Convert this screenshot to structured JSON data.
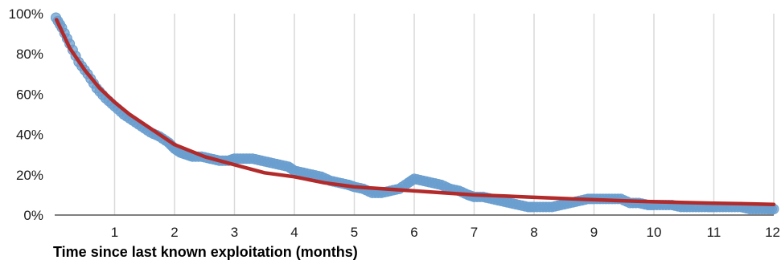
{
  "chart_data": {
    "type": "scatter",
    "title": "",
    "xlabel": "Time since last known exploitation (months)",
    "ylabel": "",
    "xlim": [
      0,
      12
    ],
    "ylim": [
      0,
      100
    ],
    "x_ticks": [
      1,
      2,
      3,
      4,
      5,
      6,
      7,
      8,
      9,
      10,
      11,
      12
    ],
    "x_tick_labels": [
      "1",
      "2",
      "3",
      "4",
      "5",
      "6",
      "7",
      "8",
      "9",
      "10",
      "11",
      "12"
    ],
    "y_ticks": [
      0,
      20,
      40,
      60,
      80,
      100
    ],
    "y_tick_labels": [
      "0%",
      "20%",
      "40%",
      "60%",
      "80%",
      "100%"
    ],
    "grid": "vertical",
    "legend": "none",
    "colors": {
      "observed": "#6a9ecf",
      "fit": "#b22a2a",
      "grid": "#d9d9d9",
      "axis": "#555555"
    },
    "series": [
      {
        "kind": "observed-points",
        "x": [
          0.02,
          0.12,
          0.25,
          0.4,
          0.55,
          0.7,
          0.85,
          1.0,
          1.15,
          1.3,
          1.45,
          1.6,
          1.75,
          1.9,
          2.0,
          2.1,
          2.2,
          2.3,
          2.45,
          2.6,
          2.75,
          2.9,
          3.0,
          3.15,
          3.3,
          3.45,
          3.6,
          3.75,
          3.9,
          4.0,
          4.15,
          4.3,
          4.45,
          4.6,
          4.75,
          4.9,
          5.0,
          5.15,
          5.3,
          5.45,
          5.6,
          5.75,
          5.9,
          6.0,
          6.15,
          6.3,
          6.45,
          6.6,
          6.75,
          6.9,
          7.0,
          7.15,
          7.3,
          7.45,
          7.6,
          7.75,
          7.9,
          8.0,
          8.15,
          8.3,
          8.45,
          8.6,
          8.75,
          8.9,
          9.0,
          9.15,
          9.3,
          9.45,
          9.6,
          9.75,
          9.9,
          10.0,
          10.15,
          10.3,
          10.45,
          10.6,
          10.75,
          10.9,
          11.0,
          11.15,
          11.3,
          11.45,
          11.6,
          11.75,
          11.9,
          12.0
        ],
        "y": [
          98,
          93,
          85,
          76,
          70,
          63,
          58,
          54,
          50,
          47,
          44,
          41,
          39,
          36,
          33,
          31,
          30,
          29,
          29,
          28,
          27,
          27,
          28,
          28,
          28,
          27,
          26,
          25,
          24,
          22,
          21,
          20,
          19,
          17,
          16,
          15,
          14,
          13,
          11,
          11,
          12,
          13,
          16,
          18,
          17,
          16,
          15,
          13,
          12,
          10,
          9,
          9,
          8,
          7,
          6,
          5,
          4,
          4,
          4,
          4,
          5,
          6,
          7,
          8,
          8,
          8,
          8,
          8,
          6,
          6,
          5,
          5,
          5,
          5,
          4,
          4,
          4,
          4,
          4,
          4,
          4,
          4,
          3,
          3,
          3,
          3
        ]
      },
      {
        "kind": "fitted-curve",
        "x": [
          0.03,
          0.25,
          0.5,
          0.75,
          1.0,
          1.25,
          1.5,
          1.75,
          2.0,
          2.5,
          3.0,
          3.5,
          4.0,
          4.5,
          5.0,
          5.5,
          6.0,
          6.5,
          7.0,
          7.5,
          8.0,
          8.5,
          9.0,
          9.5,
          10.0,
          10.5,
          11.0,
          11.5,
          12.0
        ],
        "y": [
          97,
          83,
          72,
          63,
          56,
          50,
          45,
          40,
          35,
          29,
          25,
          21,
          19,
          16,
          14,
          13,
          12,
          11,
          10,
          9.5,
          8.8,
          8.2,
          7.6,
          7.1,
          6.6,
          6.2,
          5.9,
          5.6,
          5.3
        ]
      }
    ]
  }
}
